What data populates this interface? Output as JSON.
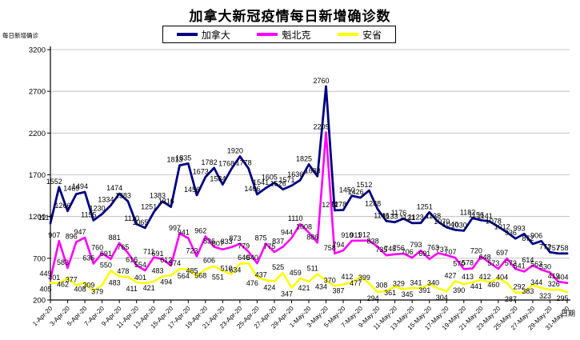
{
  "title": "加拿大新冠疫情每日新增确诊数",
  "y_axis_title": "每日新增确诊",
  "x_axis_title": "日期",
  "legend": [
    {
      "label": "加拿大",
      "color": "#000080"
    },
    {
      "label": "魁北克",
      "color": "#FF00FF"
    },
    {
      "label": "安省",
      "color": "#FFFF00"
    }
  ],
  "chart_data": {
    "type": "line",
    "title": "加拿大新冠疫情每日新增确诊数",
    "xlabel": "日期",
    "ylabel": "每日新增确诊",
    "ylim": [
      200,
      3200
    ],
    "y_ticks": [
      200,
      700,
      1200,
      1700,
      2200,
      2700,
      3200
    ],
    "grid": true,
    "legend_position": "top-center",
    "x_tick_step": 2,
    "x": [
      "1-Apr-20",
      "2-Apr-20",
      "3-Apr-20",
      "4-Apr-20",
      "5-Apr-20",
      "6-Apr-20",
      "7-Apr-20",
      "8-Apr-20",
      "9-Apr-20",
      "10-Apr-20",
      "11-Apr-20",
      "12-Apr-20",
      "13-Apr-20",
      "14-Apr-20",
      "15-Apr-20",
      "16-Apr-20",
      "17-Apr-20",
      "18-Apr-20",
      "19-Apr-20",
      "20-Apr-20",
      "21-Apr-20",
      "22-Apr-20",
      "23-Apr-20",
      "24-Apr-20",
      "25-Apr-20",
      "26-Apr-20",
      "27-Apr-20",
      "28-Apr-20",
      "29-Apr-20",
      "30-Apr-20",
      "1-May-20",
      "2-May-20",
      "3-May-20",
      "4-May-20",
      "5-May-20",
      "6-May-20",
      "7-May-20",
      "8-May-20",
      "9-May-20",
      "10-May-20",
      "11-May-20",
      "12-May-20",
      "13-May-20",
      "14-May-20",
      "15-May-20",
      "16-May-20",
      "17-May-20",
      "18-May-20",
      "19-May-20",
      "20-May-20",
      "21-May-20",
      "22-May-20",
      "23-May-20",
      "24-May-20",
      "25-May-20",
      "26-May-20",
      "27-May-20",
      "28-May-20",
      "29-May-20",
      "30-May-20",
      "31-May-20"
    ],
    "series": [
      {
        "name": "加拿大",
        "color": "#000080",
        "width": 2.8,
        "values": [
          1119,
          1552,
          1266,
          1469,
          1494,
          1155,
          1230,
          1334,
          1474,
          1383,
          1110,
          1065,
          1251,
          1383,
          1316,
          1813,
          1835,
          1456,
          1673,
          1782,
          1584,
          1768,
          1920,
          1778,
          1466,
          1541,
          1605,
          1526,
          1571,
          1636,
          1825,
          1683,
          2760,
          1274,
          1278,
          1450,
          1426,
          1512,
          1288,
          1146,
          1133,
          1176,
          1121,
          1123,
          1251,
          1138,
          1070,
          1040,
          1030,
          1182,
          1156,
          1141,
          1078,
          1012,
          936,
          993,
          872,
          906,
          772,
          757,
          758
        ]
      },
      {
        "name": "魁北克",
        "color": "#FF00FF",
        "width": 2.6,
        "values": [
          449,
          907,
          583,
          896,
          947,
          636,
          760,
          691,
          881,
          765,
          616,
          554,
          711,
          691,
          612,
          997,
          941,
          723,
          962,
          836,
          807,
          833,
          873,
          779,
          640,
          875,
          775,
          837,
          944,
          1110,
          1008,
          886,
          2209,
          758,
          794,
          910,
          911,
          912,
          838,
          735,
          748,
          756,
          706,
          793,
          691,
          763,
          737,
          707,
          570,
          578,
          720,
          648,
          573,
          697,
          573,
          541,
          614,
          563,
          530,
          419,
          404
        ]
      },
      {
        "name": "安省",
        "color": "#FFFF00",
        "width": 2.6,
        "values": [
          405,
          401,
          462,
          377,
          408,
          309,
          379,
          550,
          483,
          478,
          411,
          401,
          421,
          483,
          494,
          574,
          564,
          485,
          568,
          606,
          551,
          510,
          634,
          640,
          476,
          437,
          424,
          525,
          347,
          459,
          421,
          511,
          434,
          370,
          387,
          412,
          477,
          399,
          294,
          308,
          361,
          329,
          345,
          341,
          391,
          340,
          304,
          427,
          390,
          413,
          441,
          412,
          460,
          404,
          287,
          292,
          383,
          344,
          323,
          326,
          295
        ]
      }
    ]
  }
}
